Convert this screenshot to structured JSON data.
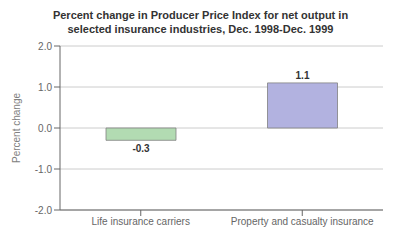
{
  "chart_data": {
    "type": "bar",
    "title": "Percent change in Producer Price Index for net output in\nselected insurance industries, Dec. 1998-Dec. 1999",
    "categories": [
      "Life insurance carriers",
      "Property and casualty insurance"
    ],
    "values": [
      -0.3,
      1.1
    ],
    "colors": [
      "#b2dbb2",
      "#b2b2e0"
    ],
    "ylabel": "Percent change",
    "ylim": [
      -2.0,
      2.0
    ],
    "yticks": [
      {
        "value": -2.0,
        "label": "-2.0"
      },
      {
        "value": -1.0,
        "label": "-1.0"
      },
      {
        "value": 0.0,
        "label": "0.0"
      },
      {
        "value": 1.0,
        "label": "1.0"
      },
      {
        "value": 2.0,
        "label": "2.0"
      }
    ],
    "grid": true,
    "data_labels": true
  }
}
